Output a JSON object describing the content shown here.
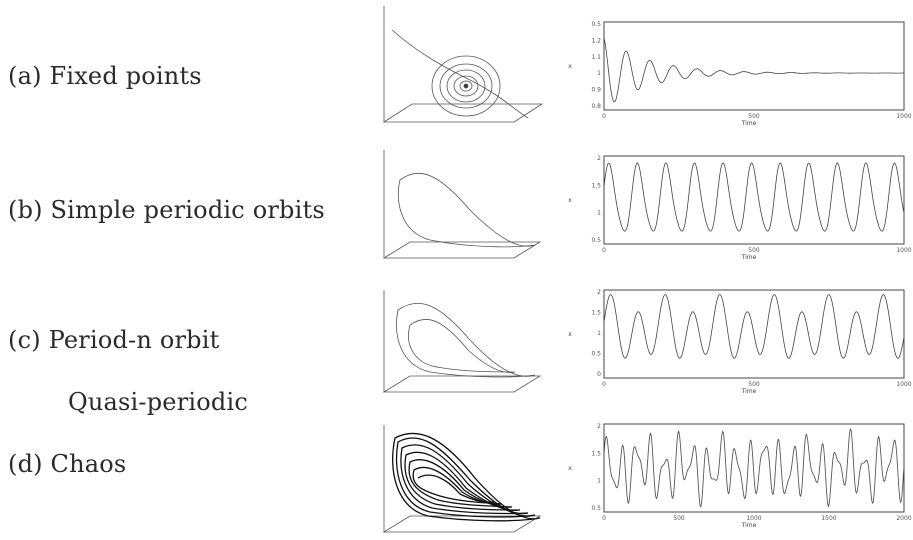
{
  "labels": {
    "a": "(a) Fixed points",
    "b": "(b) Simple periodic orbits",
    "c": "(c) Period-n orbit",
    "c2": "Quasi-periodic",
    "d": "(d) Chaos"
  },
  "panels": [
    {
      "id": "a",
      "x_label": "Time",
      "y_label": "x",
      "x_ticks": [
        "0",
        "500",
        "1000"
      ],
      "y_ticks": [
        "0.5",
        "1.2",
        "1.1",
        "1",
        "0.9",
        "0.8"
      ]
    },
    {
      "id": "b",
      "x_label": "Time",
      "y_label": "x",
      "x_ticks": [
        "0",
        "500",
        "1000"
      ],
      "y_ticks": [
        "2",
        "1.5",
        "1",
        "0.5"
      ]
    },
    {
      "id": "c",
      "x_label": "Time",
      "y_label": "x",
      "x_ticks": [
        "0",
        "500",
        "1000"
      ],
      "y_ticks": [
        "2",
        "1.5",
        "1",
        "0.5",
        "0"
      ]
    },
    {
      "id": "d",
      "x_label": "Time",
      "y_label": "x",
      "x_ticks": [
        "0",
        "500",
        "1000",
        "1500",
        "2000"
      ],
      "y_ticks": [
        "2",
        "1.5",
        "1",
        "0.5"
      ]
    }
  ]
}
